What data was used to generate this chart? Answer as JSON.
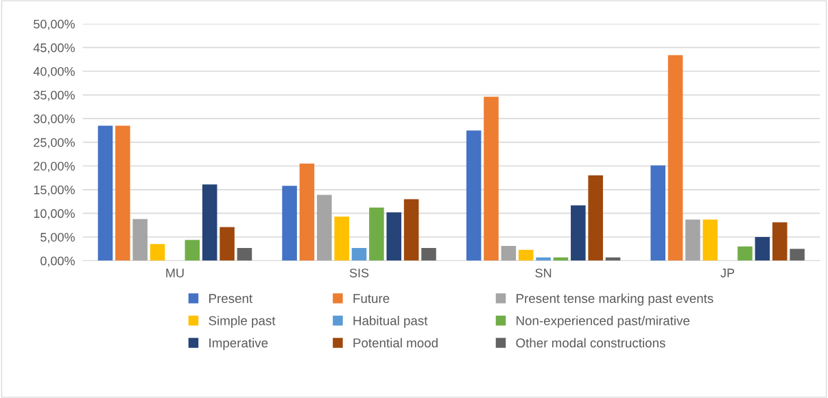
{
  "chart_data": {
    "type": "bar",
    "categories": [
      "MU",
      "SIS",
      "SN",
      "JP"
    ],
    "series": [
      {
        "name": "Present",
        "color": "#4472c4",
        "values": [
          28.5,
          15.8,
          27.5,
          20.1
        ]
      },
      {
        "name": "Future",
        "color": "#ed7d31",
        "values": [
          28.5,
          20.5,
          34.6,
          43.4
        ]
      },
      {
        "name": "Present tense marking past events",
        "color": "#a5a5a5",
        "values": [
          8.8,
          13.9,
          3.1,
          8.7
        ]
      },
      {
        "name": "Simple past",
        "color": "#ffc000",
        "values": [
          3.5,
          9.3,
          2.3,
          8.7
        ]
      },
      {
        "name": "Habitual past",
        "color": "#5b9bd5",
        "values": [
          0,
          2.7,
          0.7,
          0
        ]
      },
      {
        "name": "Non-experienced past/mirative",
        "color": "#70ad47",
        "values": [
          4.4,
          11.2,
          0.7,
          3.0
        ]
      },
      {
        "name": "Imperative",
        "color": "#264478",
        "values": [
          16.1,
          10.2,
          11.7,
          5.0
        ]
      },
      {
        "name": "Potential mood",
        "color": "#9e480e",
        "values": [
          7.1,
          13.0,
          18.0,
          8.1
        ]
      },
      {
        "name": "Other modal constructions",
        "color": "#636363",
        "values": [
          2.7,
          2.7,
          0.7,
          2.5
        ]
      }
    ],
    "ylim": [
      0,
      50
    ],
    "yticks": [
      {
        "value": 0,
        "label": "0,00%"
      },
      {
        "value": 5,
        "label": "5,00%"
      },
      {
        "value": 10,
        "label": "10,00%"
      },
      {
        "value": 15,
        "label": "15,00%"
      },
      {
        "value": 20,
        "label": "20,00%"
      },
      {
        "value": 25,
        "label": "25,00%"
      },
      {
        "value": 30,
        "label": "30,00%"
      },
      {
        "value": 35,
        "label": "35,00%"
      },
      {
        "value": 40,
        "label": "40,00%"
      },
      {
        "value": 45,
        "label": "45,00%"
      },
      {
        "value": 50,
        "label": "50,00%"
      }
    ],
    "grid": "y",
    "legend": "bottom"
  }
}
